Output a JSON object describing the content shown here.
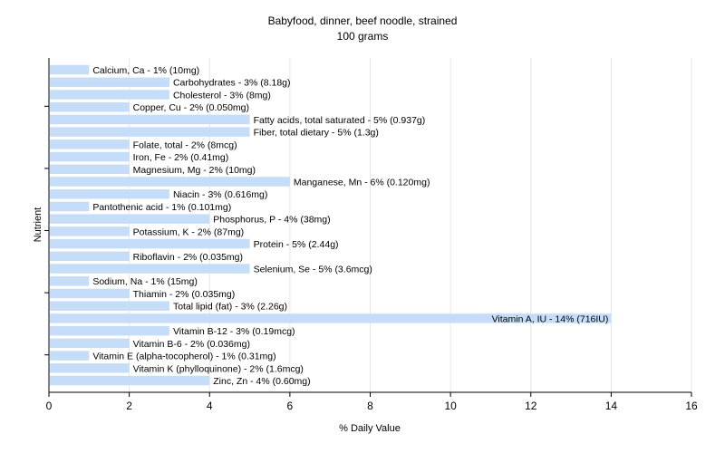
{
  "chart_data": {
    "type": "bar",
    "orientation": "horizontal",
    "title": "Babyfood, dinner, beef noodle, strained",
    "subtitle": "100 grams",
    "xlabel": "% Daily Value",
    "ylabel": "Nutrient",
    "xlim": [
      0,
      16
    ],
    "xticks": [
      0,
      2,
      4,
      6,
      8,
      10,
      12,
      14,
      16
    ],
    "grid": true,
    "bar_color": "#c6ddf9",
    "categories": [
      "Calcium, Ca",
      "Carbohydrates",
      "Cholesterol",
      "Copper, Cu",
      "Fatty acids, total saturated",
      "Fiber, total dietary",
      "Folate, total",
      "Iron, Fe",
      "Magnesium, Mg",
      "Manganese, Mn",
      "Niacin",
      "Pantothenic acid",
      "Phosphorus, P",
      "Potassium, K",
      "Protein",
      "Riboflavin",
      "Selenium, Se",
      "Sodium, Na",
      "Thiamin",
      "Total lipid (fat)",
      "Vitamin A, IU",
      "Vitamin B-12",
      "Vitamin B-6",
      "Vitamin E (alpha-tocopherol)",
      "Vitamin K (phylloquinone)",
      "Zinc, Zn"
    ],
    "values": [
      1,
      3,
      3,
      2,
      5,
      5,
      2,
      2,
      2,
      6,
      3,
      1,
      4,
      2,
      5,
      2,
      5,
      1,
      2,
      3,
      14,
      3,
      2,
      1,
      2,
      4
    ],
    "labels": [
      "Calcium, Ca - 1% (10mg)",
      "Carbohydrates - 3% (8.18g)",
      "Cholesterol - 3% (8mg)",
      "Copper, Cu - 2% (0.050mg)",
      "Fatty acids, total saturated - 5% (0.937g)",
      "Fiber, total dietary - 5% (1.3g)",
      "Folate, total - 2% (8mcg)",
      "Iron, Fe - 2% (0.41mg)",
      "Magnesium, Mg - 2% (10mg)",
      "Manganese, Mn - 6% (0.120mg)",
      "Niacin - 3% (0.616mg)",
      "Pantothenic acid - 1% (0.101mg)",
      "Phosphorus, P - 4% (38mg)",
      "Potassium, K - 2% (87mg)",
      "Protein - 5% (2.44g)",
      "Riboflavin - 2% (0.035mg)",
      "Selenium, Se - 5% (3.6mcg)",
      "Sodium, Na - 1% (15mg)",
      "Thiamin - 2% (0.035mg)",
      "Total lipid (fat) - 3% (2.26g)",
      "Vitamin A, IU - 14% (716IU)",
      "Vitamin B-12 - 3% (0.19mcg)",
      "Vitamin B-6 - 2% (0.036mg)",
      "Vitamin E (alpha-tocopherol) - 1% (0.31mg)",
      "Vitamin K (phylloquinone) - 2% (1.6mcg)",
      "Zinc, Zn - 4% (0.60mg)"
    ]
  }
}
